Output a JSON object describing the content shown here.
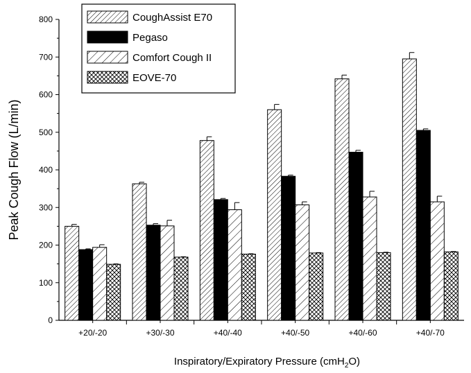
{
  "chart_data": {
    "type": "bar",
    "title": "",
    "xlabel": "Inspiratory/Expiratory Pressure (cmH",
    "xlabel_sub": "2",
    "xlabel_end": "O)",
    "ylabel": "Peak Cough Flow (L/min)",
    "ylim": [
      0,
      800
    ],
    "yticks": [
      "0",
      "100",
      "200",
      "300",
      "400",
      "500",
      "600",
      "700",
      "800"
    ],
    "categories": [
      "+20/-20",
      "+30/-30",
      "+40/-40",
      "+40/-50",
      "+40/-60",
      "+40/-70"
    ],
    "legend_position": "top-left",
    "grid": false,
    "series": [
      {
        "name": "CoughAssist E70",
        "pattern": "diagonal-dense",
        "values": [
          250,
          363,
          478,
          560,
          642,
          695
        ],
        "errors": [
          5,
          4,
          10,
          14,
          10,
          17
        ]
      },
      {
        "name": "Pegaso",
        "pattern": "solid-black",
        "values": [
          188,
          253,
          321,
          383,
          447,
          505
        ],
        "errors": [
          2,
          4,
          3,
          3,
          5,
          4
        ]
      },
      {
        "name": "Comfort Cough II",
        "pattern": "diagonal-sparse",
        "values": [
          194,
          251,
          294,
          307,
          328,
          315
        ],
        "errors": [
          7,
          15,
          19,
          8,
          15,
          15
        ]
      },
      {
        "name": "EOVE-70",
        "pattern": "crosshatch",
        "values": [
          149,
          168,
          176,
          179,
          180,
          182
        ],
        "errors": [
          1,
          1,
          1,
          1,
          1,
          1
        ]
      }
    ]
  }
}
